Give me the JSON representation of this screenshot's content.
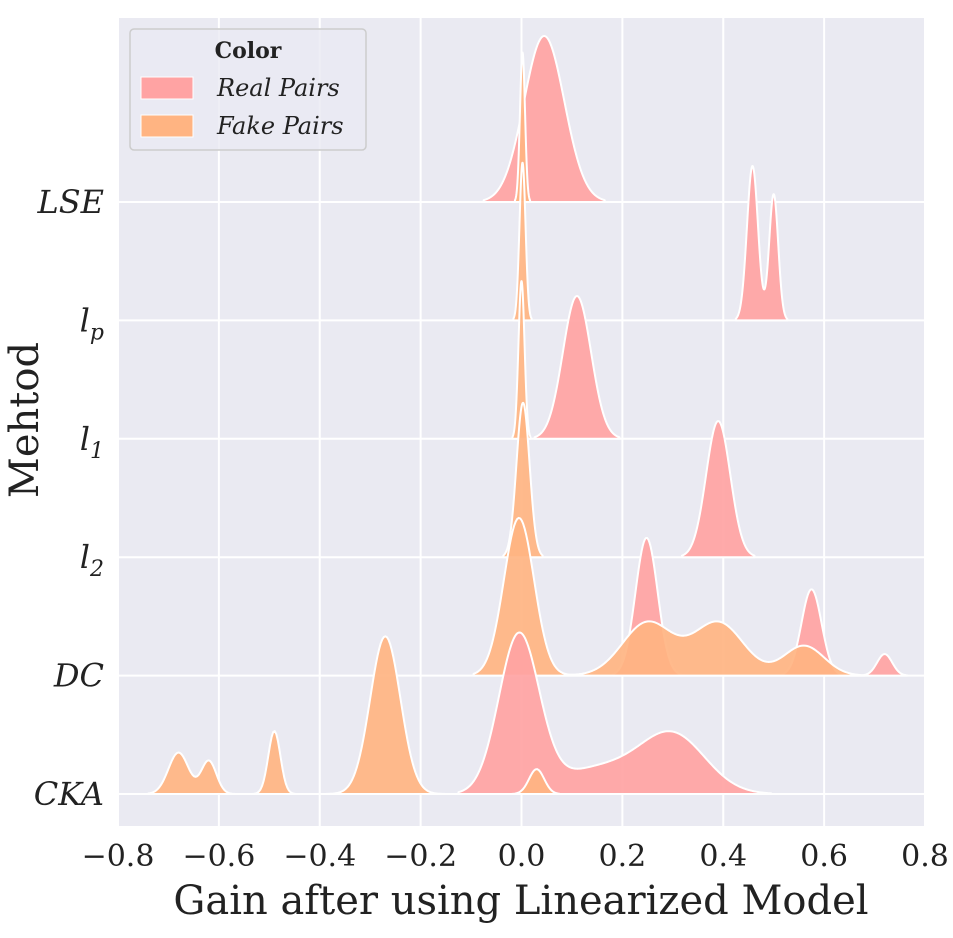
{
  "chart_data": {
    "type": "ridgeline",
    "xlabel": "Gain after using Linearized Model",
    "ylabel": "Mehtod",
    "xlim": [
      -0.8,
      0.8
    ],
    "xticks": [
      -0.8,
      -0.6,
      -0.4,
      -0.2,
      0.0,
      0.2,
      0.4,
      0.6,
      0.8
    ],
    "xtick_labels": [
      "−0.8",
      "−0.6",
      "−0.4",
      "−0.2",
      "0.0",
      "0.2",
      "0.4",
      "0.6",
      "0.8"
    ],
    "grid": true,
    "legend": {
      "title": "Color",
      "position": "top-left",
      "entries": [
        {
          "label": "Real Pairs",
          "color": "#ffa3a3"
        },
        {
          "label": "Fake Pairs",
          "color": "#ffb482"
        }
      ]
    },
    "categories": [
      "LSE",
      "l_p",
      "l_1",
      "l_2",
      "DC",
      "CKA"
    ],
    "category_display": [
      {
        "base": "LSE",
        "sub": ""
      },
      {
        "base": "l",
        "sub": "p"
      },
      {
        "base": "l",
        "sub": "1"
      },
      {
        "base": "l",
        "sub": "2"
      },
      {
        "base": "DC",
        "sub": ""
      },
      {
        "base": "CKA",
        "sub": ""
      }
    ],
    "series": [
      {
        "name": "Real Pairs",
        "color": "#ffa3a3",
        "distributions": {
          "LSE": [
            {
              "mu": 0.045,
              "sigma": 0.04,
              "w": 1.0
            }
          ],
          "l_p": [
            {
              "mu": 0.458,
              "sigma": 0.011,
              "w": 0.93
            },
            {
              "mu": 0.5,
              "sigma": 0.009,
              "w": 0.76
            }
          ],
          "l_1": [
            {
              "mu": 0.11,
              "sigma": 0.028,
              "w": 0.86
            }
          ],
          "l_2": [
            {
              "mu": 0.39,
              "sigma": 0.024,
              "w": 0.82
            }
          ],
          "DC": [
            {
              "mu": 0.248,
              "sigma": 0.022,
              "w": 0.83
            },
            {
              "mu": 0.575,
              "sigma": 0.02,
              "w": 0.52
            },
            {
              "mu": 0.72,
              "sigma": 0.015,
              "w": 0.13
            }
          ],
          "CKA": [
            {
              "mu": -0.005,
              "sigma": 0.04,
              "w": 0.95
            },
            {
              "mu": 0.3,
              "sigma": 0.065,
              "w": 0.35
            },
            {
              "mu": 0.15,
              "sigma": 0.08,
              "w": 0.15
            }
          ]
        }
      },
      {
        "name": "Fake Pairs",
        "color": "#ffb482",
        "distributions": {
          "LSE": [
            {
              "mu": 0.002,
              "sigma": 0.005,
              "w": 0.9
            }
          ],
          "l_p": [
            {
              "mu": 0.002,
              "sigma": 0.006,
              "w": 0.95
            }
          ],
          "l_1": [
            {
              "mu": 0.0,
              "sigma": 0.006,
              "w": 0.95
            }
          ],
          "l_2": [
            {
              "mu": 0.003,
              "sigma": 0.013,
              "w": 0.93
            }
          ],
          "DC": [
            {
              "mu": -0.005,
              "sigma": 0.03,
              "w": 0.95
            },
            {
              "mu": 0.25,
              "sigma": 0.05,
              "w": 0.32
            },
            {
              "mu": 0.39,
              "sigma": 0.05,
              "w": 0.32
            },
            {
              "mu": 0.56,
              "sigma": 0.04,
              "w": 0.18
            }
          ],
          "CKA": [
            {
              "mu": -0.27,
              "sigma": 0.03,
              "w": 0.95
            },
            {
              "mu": -0.49,
              "sigma": 0.012,
              "w": 0.38
            },
            {
              "mu": -0.68,
              "sigma": 0.02,
              "w": 0.25
            },
            {
              "mu": -0.62,
              "sigma": 0.015,
              "w": 0.2
            },
            {
              "mu": 0.03,
              "sigma": 0.015,
              "w": 0.15
            }
          ]
        }
      }
    ]
  }
}
